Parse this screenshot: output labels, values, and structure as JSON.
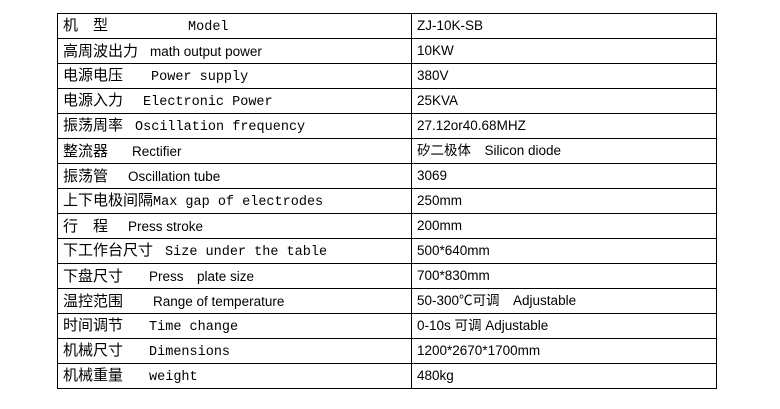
{
  "rows": [
    {
      "zh": "机　型",
      "en": "Model",
      "value": "ZJ-10K-SB"
    },
    {
      "zh": "高周波出力",
      "en": "math output power",
      "value": "10KW"
    },
    {
      "zh": "电源电压",
      "en": "Power supply",
      "value": "380V"
    },
    {
      "zh": "电源入力",
      "en": "Electronic Power",
      "value": "25KVA"
    },
    {
      "zh": "振荡周率",
      "en": "Oscillation frequency",
      "value": "27.12or40.68MHZ"
    },
    {
      "zh": "整流器",
      "en": "Rectifier",
      "value": "矽二极体　Silicon diode"
    },
    {
      "zh": "振荡管",
      "en": "Oscillation tube",
      "value": "3069"
    },
    {
      "zh": "上下电极间隔",
      "en": "Max gap of electrodes",
      "value": "250mm"
    },
    {
      "zh": "行　程",
      "en": "Press stroke",
      "value": "200mm"
    },
    {
      "zh": "下工作台尺寸",
      "en": "Size under the table",
      "value": "500*640mm"
    },
    {
      "zh": "下盘尺寸",
      "en": "Press　plate size",
      "value": "700*830mm"
    },
    {
      "zh": "温控范围",
      "en": "Range of temperature",
      "value": "50-300℃可调　Adjustable"
    },
    {
      "zh": "时间调节",
      "en": "Time change",
      "value": "0-10s 可调 Adjustable"
    },
    {
      "zh": "机械尺寸",
      "en": "Dimensions",
      "value": "1200*2670*1700mm"
    },
    {
      "zh": "机械重量",
      "en": "weight",
      "value": "480kg"
    }
  ]
}
